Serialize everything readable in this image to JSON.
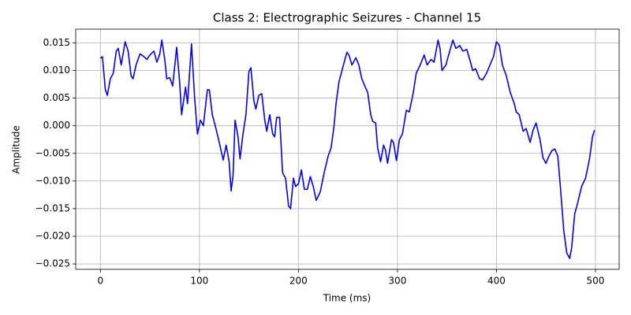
{
  "chart_data": {
    "type": "line",
    "title": "Class 2: Electrographic Seizures - Channel 15",
    "x_label": "Time (ms)",
    "y_label": "Amplitude",
    "color": "#0000ff",
    "grid": true,
    "xlim": [
      -24.95,
      523.95
    ],
    "ylim": [
      -0.02598,
      0.01748
    ],
    "xticks": [
      0,
      100,
      200,
      300,
      400,
      500
    ],
    "yticks": [
      {
        "value": -0.025,
        "label": "−0.025"
      },
      {
        "value": -0.02,
        "label": "−0.020"
      },
      {
        "value": -0.015,
        "label": "−0.015"
      },
      {
        "value": -0.01,
        "label": "−0.010"
      },
      {
        "value": -0.005,
        "label": "−0.005"
      },
      {
        "value": 0,
        "label": "0.000"
      },
      0.005,
      {
        "value": 0.01,
        "label": "0.010"
      },
      0.015
    ],
    "x": [
      0,
      2,
      5,
      7,
      10,
      13,
      16,
      18,
      21,
      25,
      28,
      31,
      33,
      36,
      40,
      44,
      47,
      50,
      54,
      57,
      60,
      62,
      65,
      67,
      70,
      73,
      77,
      80,
      82,
      84,
      86,
      88,
      92,
      95,
      98,
      101,
      104,
      108,
      110,
      113,
      116,
      120,
      124,
      127,
      130,
      132,
      134,
      136,
      139,
      141,
      144,
      147,
      150,
      152,
      155,
      157,
      160,
      163,
      166,
      168,
      171,
      174,
      176,
      178,
      181,
      184,
      187,
      190,
      192,
      195,
      197,
      200,
      203,
      206,
      209,
      212,
      215,
      218,
      222,
      226,
      230,
      233,
      236,
      238,
      241,
      244,
      247,
      249,
      251,
      254,
      258,
      261,
      264,
      268,
      270,
      273,
      275,
      278,
      280,
      283,
      286,
      288,
      290,
      294,
      296,
      299,
      302,
      305,
      309,
      312,
      316,
      319,
      323,
      327,
      330,
      334,
      337,
      341,
      343,
      345,
      349,
      352,
      356,
      359,
      363,
      366,
      370,
      373,
      376,
      379,
      383,
      386,
      390,
      393,
      397,
      400,
      403,
      406,
      410,
      414,
      418,
      420,
      423,
      427,
      430,
      434,
      437,
      440,
      444,
      447,
      450,
      453,
      456,
      459,
      462,
      465,
      468,
      471,
      474,
      476,
      479,
      482,
      486,
      490,
      494,
      497,
      499
    ],
    "values": [
      0.0122,
      0.0125,
      0.0065,
      0.0055,
      0.0085,
      0.0095,
      0.0135,
      0.014,
      0.011,
      0.0152,
      0.0135,
      0.009,
      0.0085,
      0.011,
      0.013,
      0.0125,
      0.012,
      0.0128,
      0.0135,
      0.0115,
      0.013,
      0.0155,
      0.012,
      0.0085,
      0.0087,
      0.0072,
      0.0142,
      0.008,
      0.002,
      0.0045,
      0.007,
      0.004,
      0.0148,
      0.0055,
      -0.0015,
      0.001,
      0.0,
      0.0065,
      0.0065,
      0.002,
      0.0,
      -0.003,
      -0.0062,
      -0.0035,
      -0.0065,
      -0.0118,
      -0.009,
      0.001,
      -0.002,
      -0.006,
      -0.0015,
      0.002,
      0.0098,
      0.0105,
      0.0045,
      0.003,
      0.0055,
      0.0058,
      0.001,
      -0.001,
      0.002,
      -0.0015,
      -0.002,
      0.0015,
      0.0015,
      -0.0085,
      -0.0095,
      -0.0145,
      -0.015,
      -0.0095,
      -0.011,
      -0.0105,
      -0.008,
      -0.0115,
      -0.0115,
      -0.0092,
      -0.011,
      -0.0135,
      -0.012,
      -0.0085,
      -0.0055,
      -0.004,
      0.0,
      0.004,
      0.008,
      0.01,
      0.012,
      0.0133,
      0.0128,
      0.011,
      0.0123,
      0.011,
      0.0085,
      0.0068,
      0.006,
      0.002,
      0.0008,
      0.0005,
      -0.004,
      -0.0065,
      -0.0035,
      -0.0045,
      -0.0068,
      -0.0025,
      -0.003,
      -0.0063,
      -0.0025,
      -0.0015,
      0.0028,
      0.0025,
      0.006,
      0.0095,
      0.011,
      0.0128,
      0.011,
      0.012,
      0.0115,
      0.0155,
      0.014,
      0.01,
      0.011,
      0.013,
      0.0155,
      0.014,
      0.0145,
      0.0135,
      0.0138,
      0.012,
      0.01,
      0.0103,
      0.0085,
      0.0083,
      0.0095,
      0.0108,
      0.0125,
      0.0152,
      0.0145,
      0.011,
      0.009,
      0.006,
      0.004,
      0.0025,
      0.002,
      -0.001,
      -0.0005,
      -0.003,
      -0.0008,
      0.0005,
      -0.0025,
      -0.0058,
      -0.0068,
      -0.0055,
      -0.0045,
      -0.0042,
      -0.0055,
      -0.012,
      -0.019,
      -0.023,
      -0.024,
      -0.022,
      -0.016,
      -0.014,
      -0.011,
      -0.0095,
      -0.006,
      -0.002,
      -0.0008
    ]
  }
}
